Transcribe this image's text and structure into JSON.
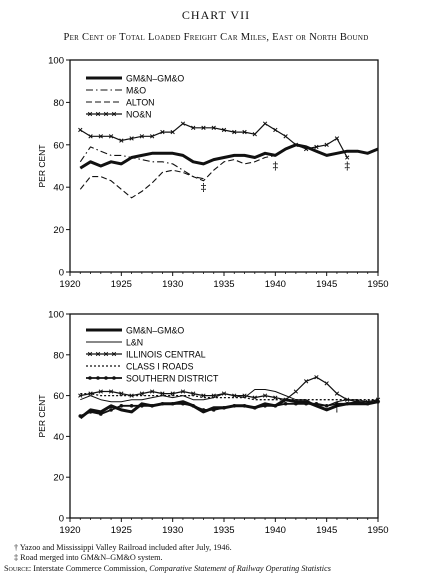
{
  "title": "CHART VII",
  "subtitle": "Per Cent of Total Loaded Freight Car Miles, East or North Bound",
  "footnotes": {
    "dagger": "† Yazoo and Mississippi Valley Railroad included after July, 1946.",
    "ddagger": "‡ Road merged into GM&N–GM&O system.",
    "source_prefix": "Source:",
    "source_text": "Interstate Commerce Commission,",
    "source_italic": "Comparative Statement of Railway Operating Statistics"
  },
  "chart_data": [
    {
      "type": "line",
      "ylabel": "PER CENT",
      "xlabel": "",
      "xlim": [
        1920,
        1950
      ],
      "ylim": [
        0,
        100
      ],
      "xticks": [
        1920,
        1925,
        1930,
        1935,
        1940,
        1945,
        1950
      ],
      "yticks": [
        0,
        20,
        40,
        60,
        80,
        100
      ],
      "legend_position": "top-left",
      "markers": [
        {
          "x": 1933,
          "y": 43,
          "symbol": "‡"
        },
        {
          "x": 1940,
          "y": 53,
          "symbol": "‡"
        },
        {
          "x": 1947,
          "y": 53,
          "symbol": "‡"
        }
      ],
      "series": [
        {
          "name": "GM&N–GM&O",
          "style": "thick",
          "x": [
            1921,
            1922,
            1923,
            1924,
            1925,
            1926,
            1927,
            1928,
            1929,
            1930,
            1931,
            1932,
            1933,
            1934,
            1935,
            1936,
            1937,
            1938,
            1939,
            1940,
            1941,
            1942,
            1943,
            1944,
            1945,
            1946,
            1947,
            1948,
            1949,
            1950
          ],
          "y": [
            49,
            52,
            50,
            52,
            51,
            54,
            55,
            56,
            56,
            56,
            55,
            52,
            51,
            53,
            54,
            55,
            55,
            54,
            56,
            55,
            58,
            60,
            59,
            57,
            55,
            56,
            57,
            57,
            56,
            58
          ]
        },
        {
          "name": "M&O",
          "style": "dash-dot",
          "x": [
            1921,
            1922,
            1923,
            1924,
            1925,
            1926,
            1927,
            1928,
            1929,
            1930,
            1931,
            1932,
            1933
          ],
          "y": [
            52,
            59,
            57,
            55,
            55,
            54,
            53,
            52,
            52,
            51,
            48,
            45,
            44
          ]
        },
        {
          "name": "ALTON",
          "style": "dashed",
          "x": [
            1921,
            1922,
            1923,
            1924,
            1925,
            1926,
            1927,
            1928,
            1929,
            1930,
            1931,
            1932,
            1933,
            1934,
            1935,
            1936,
            1937,
            1938,
            1939,
            1940
          ],
          "y": [
            39,
            45,
            45,
            43,
            39,
            35,
            38,
            42,
            47,
            48,
            47,
            45,
            43,
            48,
            52,
            53,
            51,
            52,
            54,
            55
          ]
        },
        {
          "name": "NO&N",
          "style": "marked",
          "x": [
            1921,
            1922,
            1923,
            1924,
            1925,
            1926,
            1927,
            1928,
            1929,
            1930,
            1931,
            1932,
            1933,
            1934,
            1935,
            1936,
            1937,
            1938,
            1939,
            1940,
            1941,
            1942,
            1943,
            1944,
            1945,
            1946,
            1947
          ],
          "y": [
            67,
            64,
            64,
            64,
            62,
            63,
            64,
            64,
            66,
            66,
            70,
            68,
            68,
            68,
            67,
            66,
            66,
            65,
            70,
            67,
            64,
            60,
            58,
            59,
            60,
            63,
            54
          ]
        }
      ]
    },
    {
      "type": "line",
      "ylabel": "PER CENT",
      "xlabel": "",
      "xlim": [
        1920,
        1950
      ],
      "ylim": [
        0,
        100
      ],
      "xticks": [
        1920,
        1925,
        1930,
        1935,
        1940,
        1945,
        1950
      ],
      "yticks": [
        0,
        20,
        40,
        60,
        80,
        100
      ],
      "legend_position": "top-left",
      "markers": [
        {
          "x": 1946,
          "y": 57,
          "symbol": "†"
        }
      ],
      "series": [
        {
          "name": "GM&N–GM&O",
          "style": "thick",
          "x": [
            1921,
            1922,
            1923,
            1924,
            1925,
            1926,
            1927,
            1928,
            1929,
            1930,
            1931,
            1932,
            1933,
            1934,
            1935,
            1936,
            1937,
            1938,
            1939,
            1940,
            1941,
            1942,
            1943,
            1944,
            1945,
            1946,
            1947,
            1948,
            1949,
            1950
          ],
          "y": [
            49,
            53,
            52,
            55,
            53,
            52,
            56,
            55,
            56,
            56,
            57,
            55,
            52,
            54,
            54,
            55,
            55,
            54,
            56,
            55,
            58,
            57,
            57,
            55,
            53,
            55,
            56,
            56,
            56,
            57
          ]
        },
        {
          "name": "L&N",
          "style": "thin",
          "x": [
            1921,
            1922,
            1923,
            1924,
            1925,
            1926,
            1927,
            1928,
            1929,
            1930,
            1931,
            1932,
            1933,
            1934,
            1935,
            1936,
            1937,
            1938,
            1939,
            1940,
            1941,
            1942,
            1943,
            1944,
            1945,
            1946,
            1947,
            1948,
            1949,
            1950
          ],
          "y": [
            58,
            60,
            58,
            57,
            57,
            58,
            58,
            59,
            60,
            59,
            60,
            58,
            58,
            59,
            61,
            60,
            59,
            63,
            63,
            62,
            60,
            58,
            58,
            55,
            55,
            57,
            58,
            58,
            57,
            58
          ]
        },
        {
          "name": "ILLINOIS CENTRAL",
          "style": "marked",
          "x": [
            1921,
            1922,
            1923,
            1924,
            1925,
            1926,
            1927,
            1928,
            1929,
            1930,
            1931,
            1932,
            1933,
            1934,
            1935,
            1936,
            1937,
            1938,
            1939,
            1940,
            1941,
            1942,
            1943,
            1944,
            1945,
            1946,
            1947,
            1948,
            1949,
            1950
          ],
          "y": [
            60,
            61,
            62,
            62,
            61,
            60,
            61,
            62,
            61,
            61,
            62,
            61,
            60,
            60,
            61,
            60,
            60,
            59,
            60,
            59,
            58,
            62,
            67,
            69,
            66,
            61,
            58,
            57,
            57,
            58
          ]
        },
        {
          "name": "CLASS I ROADS",
          "style": "dotted",
          "x": [
            1921,
            1922,
            1923,
            1924,
            1925,
            1926,
            1927,
            1928,
            1929,
            1930,
            1931,
            1932,
            1933,
            1934,
            1935,
            1936,
            1937,
            1938,
            1939,
            1940,
            1941,
            1942,
            1943,
            1944,
            1945,
            1946,
            1947,
            1948,
            1949,
            1950
          ],
          "y": [
            61,
            61,
            60,
            60,
            60,
            60,
            60,
            60,
            60,
            60,
            60,
            60,
            59,
            59,
            59,
            59,
            59,
            58,
            58,
            58,
            58,
            58,
            58,
            58,
            58,
            58,
            58,
            58,
            58,
            58
          ]
        },
        {
          "name": "SOUTHERN DISTRICT",
          "style": "marked-bold",
          "x": [
            1921,
            1922,
            1923,
            1924,
            1925,
            1926,
            1927,
            1928,
            1929,
            1930,
            1931,
            1932,
            1933,
            1934,
            1935,
            1936,
            1937,
            1938,
            1939,
            1940,
            1941,
            1942,
            1943,
            1944,
            1945,
            1946,
            1947,
            1948,
            1949,
            1950
          ],
          "y": [
            50,
            52,
            51,
            53,
            55,
            55,
            55,
            55,
            56,
            56,
            56,
            55,
            53,
            53,
            54,
            55,
            55,
            54,
            55,
            55,
            56,
            56,
            56,
            56,
            55,
            56,
            56,
            57,
            56,
            57
          ]
        }
      ]
    }
  ]
}
